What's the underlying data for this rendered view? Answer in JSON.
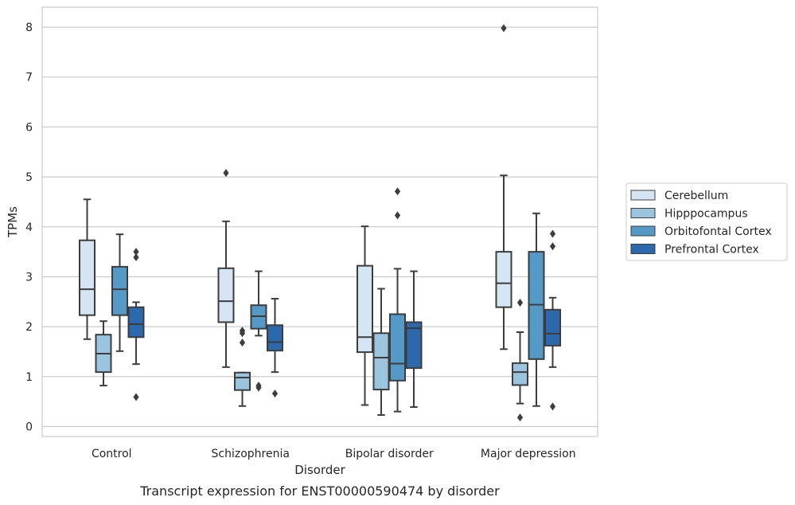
{
  "chart_data": {
    "type": "box",
    "caption": "Transcript expression for ENST00000590474 by disorder",
    "xlabel": "Disorder",
    "ylabel": "TPMs",
    "ylim": [
      -0.2,
      8.4
    ],
    "yticks": [
      0,
      1,
      2,
      3,
      4,
      5,
      6,
      7,
      8
    ],
    "grid": "horizontal",
    "legend_position": "right",
    "categories": [
      "Control",
      "Schizophrenia",
      "Bipolar disorder",
      "Major depression"
    ],
    "series": [
      {
        "name": "Cerebellum",
        "color": "#d6e5f4",
        "boxes": [
          {
            "whisker_low": 1.75,
            "q1": 2.23,
            "median": 2.75,
            "q3": 3.73,
            "whisker_high": 4.55,
            "outliers": []
          },
          {
            "whisker_low": 1.19,
            "q1": 2.09,
            "median": 2.51,
            "q3": 3.17,
            "whisker_high": 4.11,
            "outliers": [
              5.08
            ]
          },
          {
            "whisker_low": 0.43,
            "q1": 1.49,
            "median": 1.79,
            "q3": 3.22,
            "whisker_high": 4.01,
            "outliers": []
          },
          {
            "whisker_low": 1.55,
            "q1": 2.39,
            "median": 2.87,
            "q3": 3.5,
            "whisker_high": 5.03,
            "outliers": [
              7.98
            ]
          }
        ]
      },
      {
        "name": "Hipppocampus",
        "color": "#9bc5df",
        "boxes": [
          {
            "whisker_low": 0.82,
            "q1": 1.09,
            "median": 1.46,
            "q3": 1.84,
            "whisker_high": 2.11,
            "outliers": []
          },
          {
            "whisker_low": 0.41,
            "q1": 0.73,
            "median": 0.98,
            "q3": 1.08,
            "whisker_high": 1.08,
            "outliers": [
              1.68,
              1.87,
              1.92
            ]
          },
          {
            "whisker_low": 0.23,
            "q1": 0.74,
            "median": 1.38,
            "q3": 1.87,
            "whisker_high": 2.76,
            "outliers": []
          },
          {
            "whisker_low": 0.46,
            "q1": 0.83,
            "median": 1.09,
            "q3": 1.27,
            "whisker_high": 1.89,
            "outliers": [
              0.18,
              2.48
            ]
          }
        ]
      },
      {
        "name": "Orbitofontal Cortex",
        "color": "#5599c6",
        "boxes": [
          {
            "whisker_low": 1.51,
            "q1": 2.23,
            "median": 2.75,
            "q3": 3.2,
            "whisker_high": 3.85,
            "outliers": []
          },
          {
            "whisker_low": 1.82,
            "q1": 1.96,
            "median": 2.21,
            "q3": 2.43,
            "whisker_high": 3.11,
            "outliers": [
              0.78,
              0.82
            ]
          },
          {
            "whisker_low": 0.3,
            "q1": 0.92,
            "median": 1.26,
            "q3": 2.25,
            "whisker_high": 3.16,
            "outliers": [
              4.23,
              4.71
            ]
          },
          {
            "whisker_low": 0.41,
            "q1": 1.35,
            "median": 2.44,
            "q3": 3.5,
            "whisker_high": 4.27,
            "outliers": []
          }
        ]
      },
      {
        "name": "Prefrontal Cortex",
        "color": "#2b69ac",
        "boxes": [
          {
            "whisker_low": 1.25,
            "q1": 1.79,
            "median": 2.05,
            "q3": 2.39,
            "whisker_high": 2.49,
            "outliers": [
              0.59,
              3.39,
              3.5
            ]
          },
          {
            "whisker_low": 1.09,
            "q1": 1.52,
            "median": 1.69,
            "q3": 2.03,
            "whisker_high": 2.56,
            "outliers": [
              0.66
            ]
          },
          {
            "whisker_low": 0.39,
            "q1": 1.17,
            "median": 1.97,
            "q3": 2.09,
            "whisker_high": 3.11,
            "outliers": []
          },
          {
            "whisker_low": 1.19,
            "q1": 1.62,
            "median": 1.86,
            "q3": 2.34,
            "whisker_high": 2.58,
            "outliers": [
              0.4,
              3.61,
              3.86
            ]
          }
        ]
      }
    ]
  }
}
